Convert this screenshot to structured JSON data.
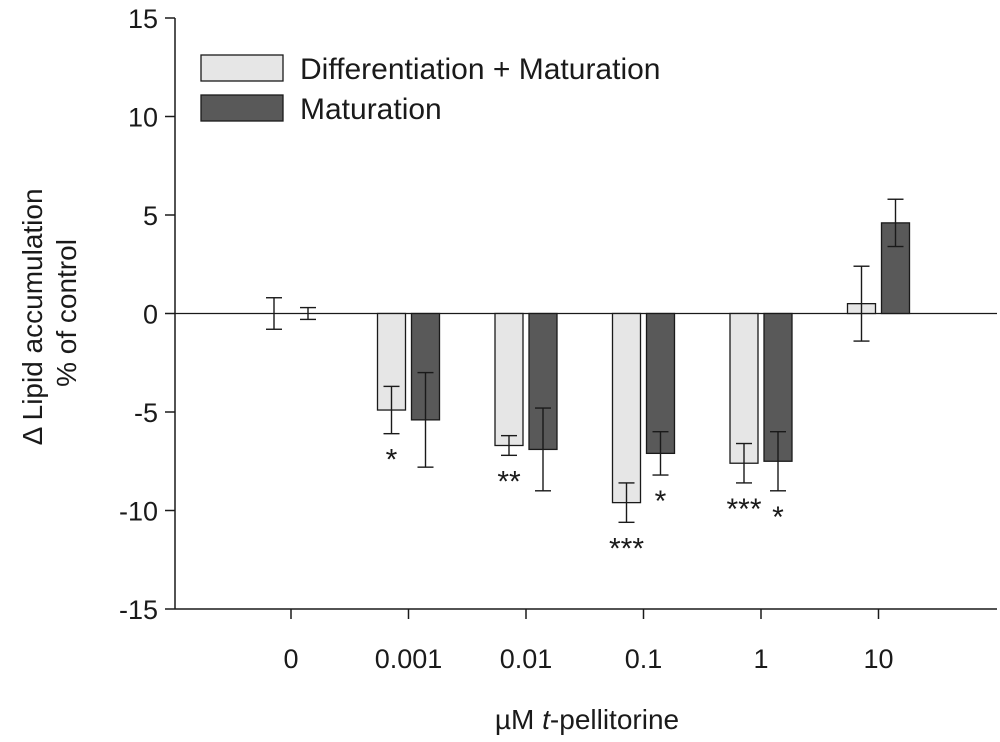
{
  "chart_data": {
    "type": "bar",
    "ylabel_line1": "Δ Lipid accumulation",
    "ylabel_line2": "% of control",
    "xlabel_prefix": "µM ",
    "xlabel_italic": "t",
    "xlabel_suffix": "-pellitorine",
    "categories": [
      "0",
      "0.001",
      "0.01",
      "0.1",
      "1",
      "10"
    ],
    "ylim": [
      -15,
      15
    ],
    "yticks": [
      15,
      10,
      5,
      0,
      -5,
      -10,
      -15
    ],
    "legend_position": "top-left",
    "series": [
      {
        "name": "Differentiation + Maturation",
        "color": "#e6e6e6",
        "values": [
          0.0,
          -4.9,
          -6.7,
          -9.6,
          -7.6,
          0.5
        ],
        "errors": [
          0.8,
          1.2,
          0.5,
          1.0,
          1.0,
          1.9
        ],
        "significance": [
          "",
          "*",
          "**",
          "***",
          "***",
          ""
        ]
      },
      {
        "name": "Maturation",
        "color": "#595959",
        "values": [
          0.0,
          -5.4,
          -6.9,
          -7.1,
          -7.5,
          4.6
        ],
        "errors": [
          0.3,
          2.4,
          2.1,
          1.1,
          1.5,
          1.2
        ],
        "significance": [
          "",
          "",
          "",
          "*",
          "*",
          ""
        ]
      }
    ]
  }
}
